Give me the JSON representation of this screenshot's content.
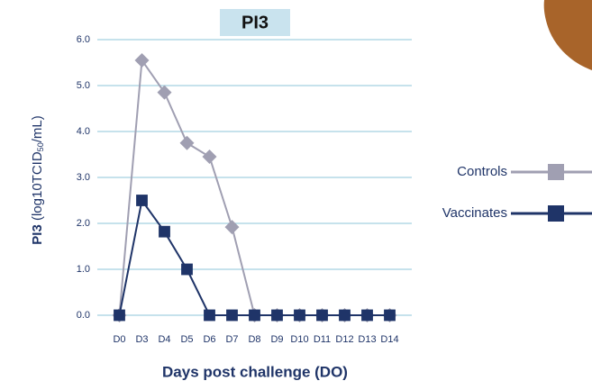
{
  "chart_data": {
    "type": "line",
    "title": "PI3",
    "xlabel": "Days post challenge (DO)",
    "ylabel": {
      "bold": "PI3",
      "text": "(log10TCID",
      "sub": "50",
      "tail": "/mL)"
    },
    "categories": [
      "D0",
      "D3",
      "D4",
      "D5",
      "D6",
      "D7",
      "D8",
      "D9",
      "D10",
      "D11",
      "D12",
      "D13",
      "D14"
    ],
    "series": [
      {
        "name": "Controls",
        "color": "#a09fb2",
        "marker": "diamond",
        "values": [
          0,
          5.55,
          4.85,
          3.75,
          3.45,
          1.92,
          0,
          0,
          0,
          0,
          0,
          0,
          0
        ]
      },
      {
        "name": "Vaccinates",
        "color": "#1f3468",
        "marker": "square",
        "values": [
          0,
          2.5,
          1.82,
          1.0,
          0,
          0,
          0,
          0,
          0,
          0,
          0,
          0,
          0
        ]
      }
    ],
    "ylim": [
      0,
      6
    ],
    "yticks": [
      {
        "value": 0,
        "label": "0.0"
      },
      {
        "value": 1,
        "label": "1.0"
      },
      {
        "value": 2,
        "label": "2.0"
      },
      {
        "value": 3,
        "label": "3.0"
      },
      {
        "value": 4,
        "label": "4.0"
      },
      {
        "value": 5,
        "label": "5.0"
      },
      {
        "value": 6,
        "label": "6.0"
      }
    ],
    "grid": true,
    "legend": "right"
  }
}
